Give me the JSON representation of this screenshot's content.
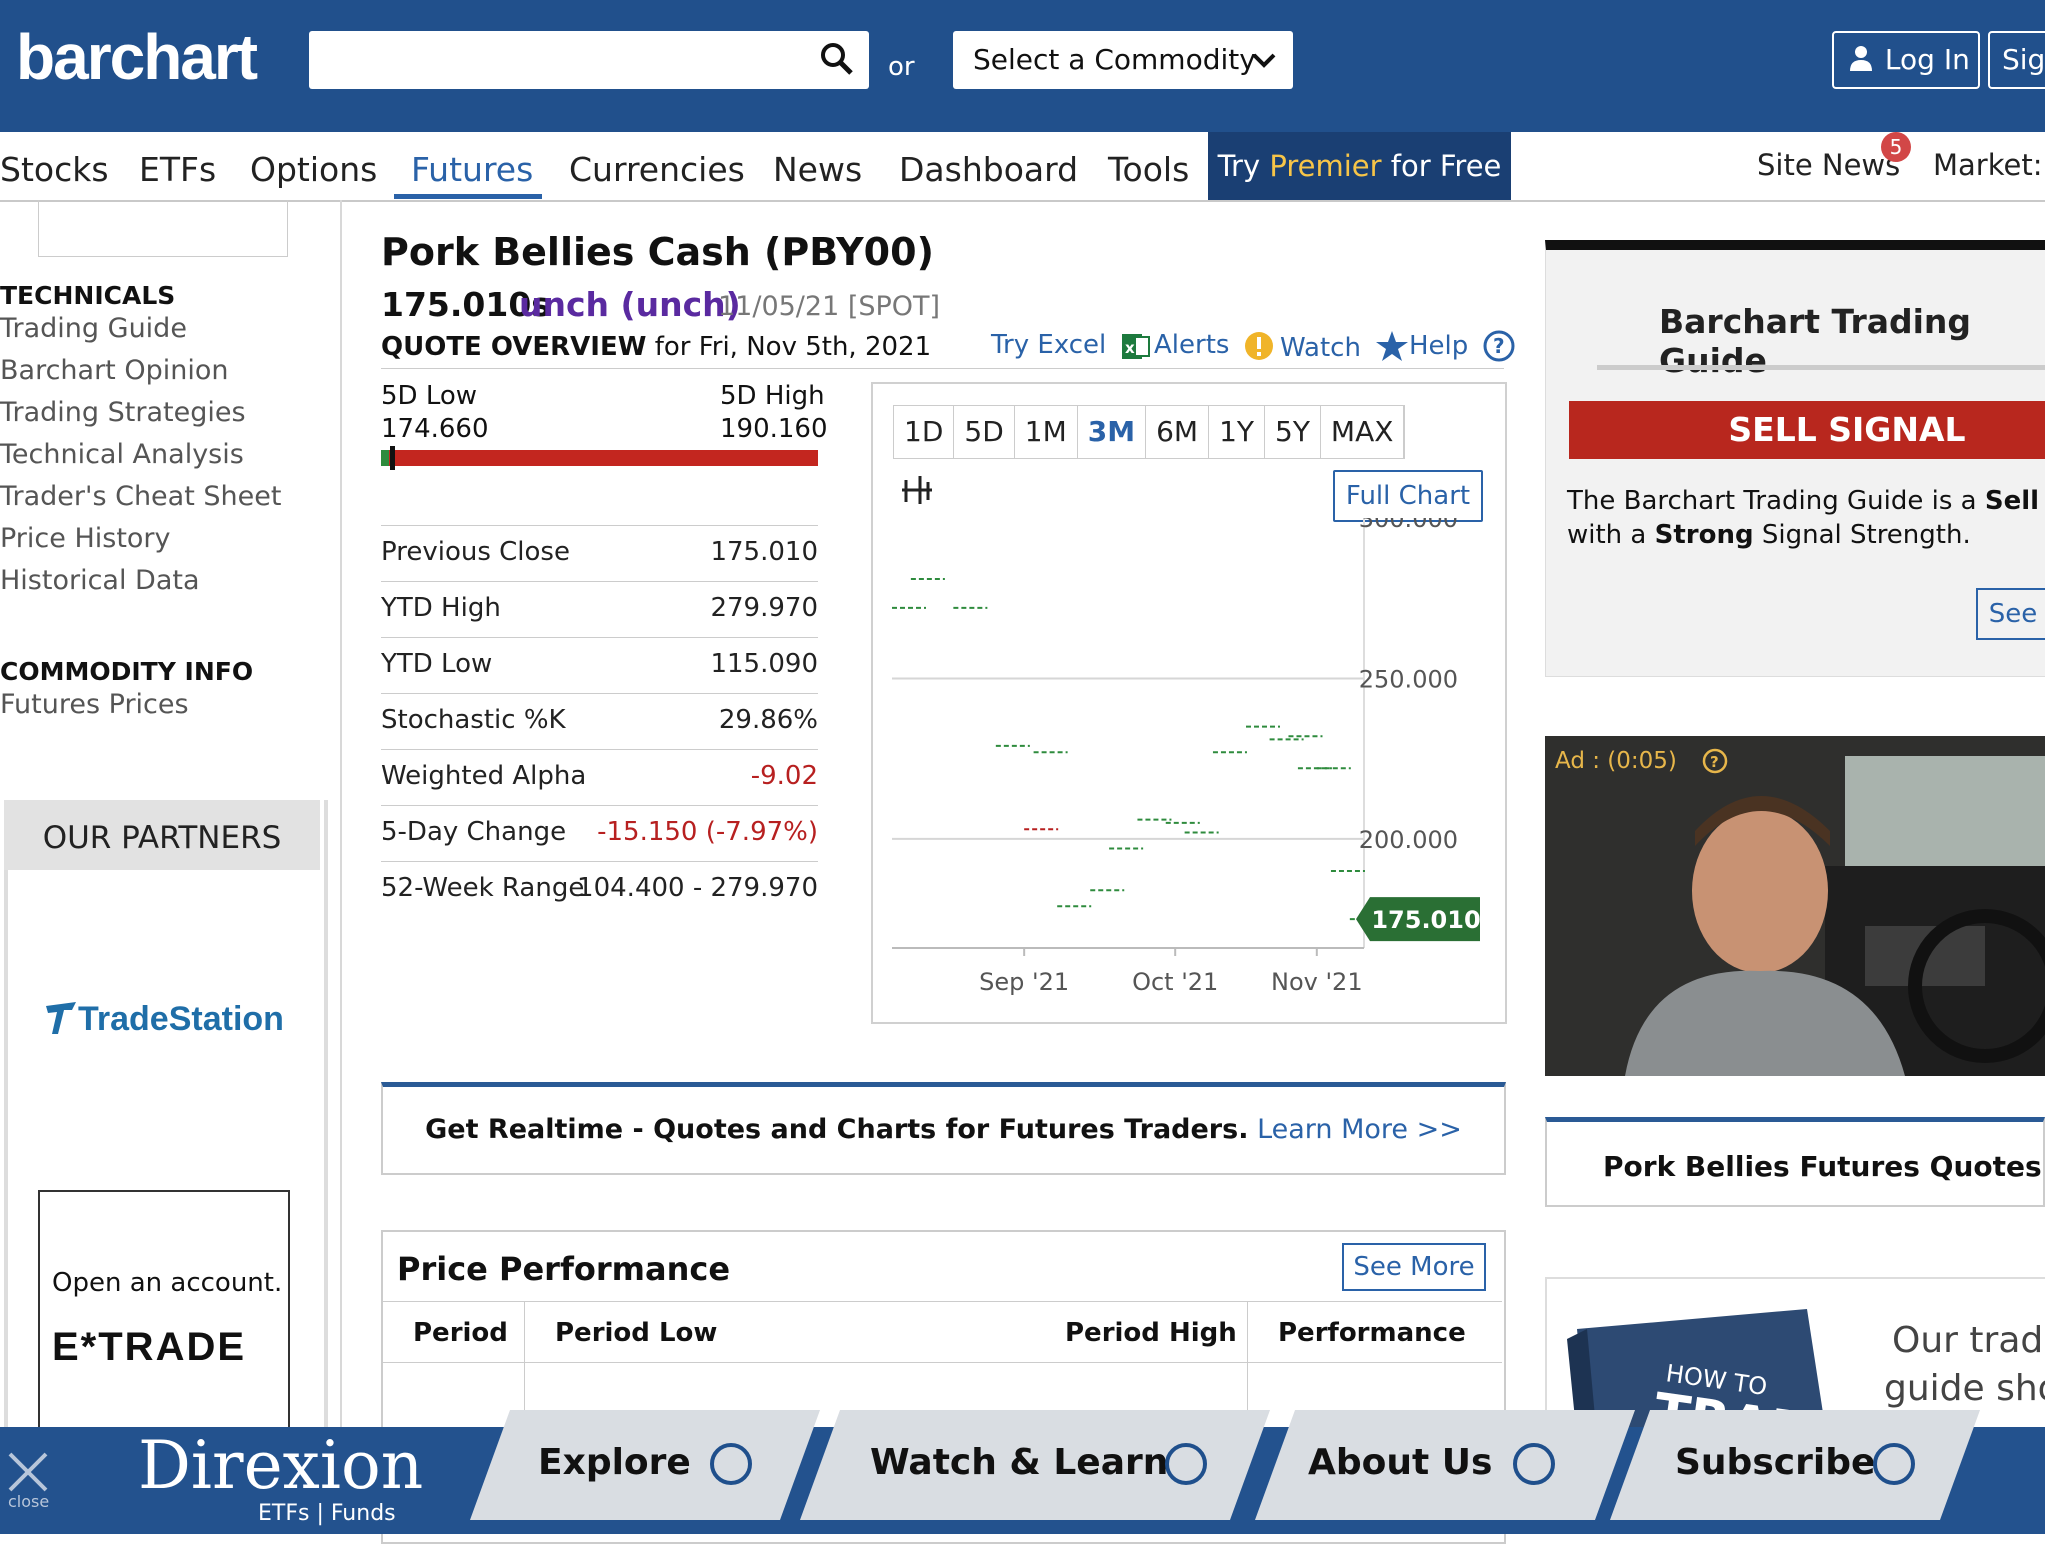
{
  "header": {
    "logo": "barchart",
    "search_placeholder": "",
    "or_label": "or",
    "commodity_select": "Select a Commodity",
    "login_label": "Log In",
    "signup_label": "Sig"
  },
  "nav": {
    "items": [
      "Stocks",
      "ETFs",
      "Options",
      "Futures",
      "Currencies",
      "News",
      "Dashboard",
      "Tools"
    ],
    "active": "Futures",
    "premier": {
      "pre": "Try ",
      "highlight": "Premier",
      "post": " for Free"
    },
    "site_news": "Site News",
    "site_news_badge": "5",
    "market": "Market:"
  },
  "sidebar": {
    "technicals_heading": "TECHNICALS",
    "technicals_links": [
      "Trading Guide",
      "Barchart Opinion",
      "Trading Strategies",
      "Technical Analysis",
      "Trader's Cheat Sheet",
      "Price History",
      "Historical Data"
    ],
    "commodity_heading": "COMMODITY INFO",
    "commodity_links": [
      "Futures Prices"
    ],
    "partners_heading": "OUR PARTNERS",
    "partner1": "TradeStation",
    "partner2_text": "Open an account.",
    "partner2_logo": "E*TRADE"
  },
  "quote": {
    "title": "Pork Bellies Cash (PBY00)",
    "price": "175.010s",
    "change": "unch (unch)",
    "date": "11/05/21 [SPOT]",
    "overview_label": "QUOTE OVERVIEW",
    "overview_date": "for Fri, Nov 5th, 2021",
    "tools": {
      "excel": "Try Excel",
      "alerts": "Alerts",
      "watch": "Watch",
      "help": "Help"
    },
    "range": {
      "low_label": "5D Low",
      "low": "174.660",
      "high_label": "5D High",
      "high": "190.160",
      "position": 0.02
    },
    "stats": [
      {
        "k": "Previous Close",
        "v": "175.010",
        "neg": false
      },
      {
        "k": "YTD High",
        "v": "279.970",
        "neg": false
      },
      {
        "k": "YTD Low",
        "v": "115.090",
        "neg": false
      },
      {
        "k": "Stochastic %K",
        "v": "29.86%",
        "neg": false
      },
      {
        "k": "Weighted Alpha",
        "v": "-9.02",
        "neg": true
      },
      {
        "k": "5-Day Change",
        "v": "-15.150 (-7.97%)",
        "neg": true
      },
      {
        "k": "52-Week Range",
        "v": "104.400 - 279.970",
        "neg": false
      }
    ]
  },
  "chart_panel": {
    "ranges": [
      "1D",
      "5D",
      "1M",
      "3M",
      "6M",
      "1Y",
      "5Y",
      "MAX"
    ],
    "selected_range": "3M",
    "full_chart_label": "Full Chart"
  },
  "chart_data": {
    "type": "line",
    "x_ticks": [
      "Sep '21",
      "Oct '21",
      "Nov '21"
    ],
    "y_ticks": [
      "300.000",
      "250.000",
      "200.000"
    ],
    "ylim": [
      166,
      300
    ],
    "last_value_label": "175.010",
    "last_value": 175.01,
    "series": [
      {
        "x": [
          0.0,
          0.04,
          0.13
        ],
        "y": [
          272,
          281,
          272
        ],
        "color": "#2e8b3d"
      },
      {
        "x": [
          0.22,
          0.3
        ],
        "y": [
          229,
          227
        ],
        "color": "#2e8b3d"
      },
      {
        "x": [
          0.28
        ],
        "y": [
          203
        ],
        "color": "#b72020"
      },
      {
        "x": [
          0.35,
          0.42
        ],
        "y": [
          179,
          184
        ],
        "color": "#2e8b3d"
      },
      {
        "x": [
          0.46,
          0.52
        ],
        "y": [
          197,
          206
        ],
        "color": "#2e8b3d"
      },
      {
        "x": [
          0.58,
          0.62
        ],
        "y": [
          205,
          202
        ],
        "color": "#2e8b3d"
      },
      {
        "x": [
          0.68,
          0.75
        ],
        "y": [
          227,
          235
        ],
        "color": "#2e8b3d"
      },
      {
        "x": [
          0.8,
          0.84
        ],
        "y": [
          231,
          232
        ],
        "color": "#2e8b3d"
      },
      {
        "x": [
          0.86,
          0.9
        ],
        "y": [
          222,
          222
        ],
        "color": "#2e8b3d"
      },
      {
        "x": [
          0.93,
          0.97
        ],
        "y": [
          190,
          175
        ],
        "color": "#2e8b3d"
      }
    ]
  },
  "banner": {
    "bold": "Get Realtime - Quotes and Charts for Futures Traders.",
    "link": "Learn More >>"
  },
  "performance": {
    "title": "Price Performance",
    "see_more": "See More",
    "columns": [
      "Period",
      "Period Low",
      "Period High",
      "Performance"
    ]
  },
  "right": {
    "guide_title": "Barchart Trading Guide",
    "signal": "SELL SIGNAL",
    "guide_text1_pre": "The Barchart Trading Guide is a ",
    "guide_text1_bold": "Sell Sig",
    "guide_text2_pre": "with a ",
    "guide_text2_bold": "Strong",
    "guide_text2_post": " Signal Strength.",
    "see_label": "See",
    "ad_label": "Ad : (0:05)",
    "api_title": "Pork Bellies Futures Quotes API",
    "book_text1": "Our tradi",
    "book_text2": "guide sho"
  },
  "bottom_ad": {
    "brand": "Direxion",
    "sub": "ETFs | Funds",
    "close": "close",
    "items": [
      "Explore",
      "Watch & Learn",
      "About Us",
      "Subscribe"
    ]
  }
}
